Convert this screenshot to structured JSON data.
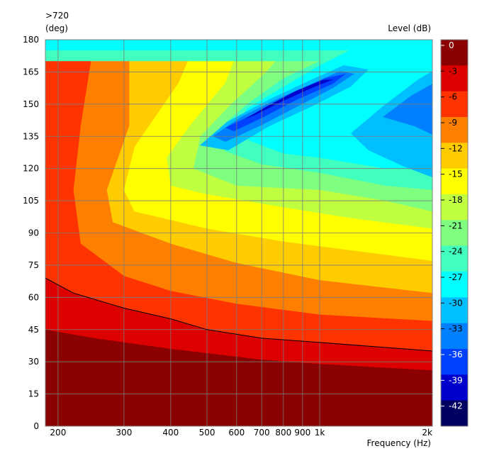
{
  "chart_data": {
    "type": "heatmap",
    "title_top_left": ">720",
    "ylabel": "(deg)",
    "xlabel": "Frequency  (Hz)",
    "colorbar_label": "Level  (dB)",
    "x_scale": "log",
    "xlim": [
      185,
      2000
    ],
    "ylim": [
      0,
      180
    ],
    "x_ticks": [
      {
        "value": 200,
        "label": "200"
      },
      {
        "value": 300,
        "label": "300"
      },
      {
        "value": 400,
        "label": "400"
      },
      {
        "value": 500,
        "label": "500"
      },
      {
        "value": 600,
        "label": "600"
      },
      {
        "value": 700,
        "label": "700"
      },
      {
        "value": 800,
        "label": "800"
      },
      {
        "value": 900,
        "label": "900"
      },
      {
        "value": 1000,
        "label": "1k"
      },
      {
        "value": 2000,
        "label": "2k"
      }
    ],
    "y_ticks": [
      0,
      15,
      30,
      45,
      60,
      75,
      90,
      105,
      120,
      135,
      150,
      165,
      180
    ],
    "colorbar": {
      "levels": [
        0,
        -3,
        -6,
        -9,
        -12,
        -15,
        -18,
        -21,
        -24,
        -27,
        -30,
        -33,
        -36,
        -39,
        -42
      ],
      "colors": [
        "#8b0000",
        "#dd0000",
        "#ff3300",
        "#ff7f00",
        "#ffcc00",
        "#ffff00",
        "#bfff40",
        "#7fff80",
        "#40ffbf",
        "#00ffff",
        "#00bfff",
        "#0080ff",
        "#0040ff",
        "#0000cc",
        "#000060"
      ]
    },
    "contours": [
      {
        "level": -3,
        "points": [
          [
            185,
            45
          ],
          [
            250,
            41
          ],
          [
            400,
            36
          ],
          [
            700,
            31
          ],
          [
            1000,
            29
          ],
          [
            2000,
            26
          ]
        ]
      },
      {
        "level": -6,
        "points": [
          [
            185,
            69
          ],
          [
            220,
            62
          ],
          [
            300,
            55
          ],
          [
            400,
            50
          ],
          [
            500,
            45
          ],
          [
            700,
            41
          ],
          [
            1000,
            39
          ],
          [
            2000,
            35
          ]
        ]
      },
      {
        "level": -9,
        "points": [
          [
            250,
            180
          ],
          [
            230,
            140
          ],
          [
            220,
            110
          ],
          [
            230,
            85
          ],
          [
            300,
            70
          ],
          [
            400,
            63
          ],
          [
            600,
            57
          ],
          [
            1000,
            52
          ],
          [
            2000,
            49
          ]
        ]
      },
      {
        "level": -12,
        "points": [
          [
            310,
            180
          ],
          [
            310,
            140
          ],
          [
            270,
            110
          ],
          [
            280,
            95
          ],
          [
            400,
            85
          ],
          [
            600,
            76
          ],
          [
            1000,
            68
          ],
          [
            2000,
            62
          ]
        ]
      },
      {
        "level": -15,
        "points": [
          [
            470,
            180
          ],
          [
            420,
            160
          ],
          [
            320,
            130
          ],
          [
            300,
            110
          ],
          [
            320,
            100
          ],
          [
            500,
            92
          ],
          [
            800,
            86
          ],
          [
            1200,
            82
          ],
          [
            2000,
            77
          ]
        ]
      },
      {
        "level": -18,
        "points": [
          [
            620,
            180
          ],
          [
            560,
            160
          ],
          [
            450,
            140
          ],
          [
            390,
            125
          ],
          [
            400,
            112
          ],
          [
            500,
            108
          ],
          [
            800,
            102
          ],
          [
            1200,
            97
          ],
          [
            2000,
            92
          ]
        ]
      },
      {
        "level": -21,
        "points": [
          [
            850,
            180
          ],
          [
            720,
            165
          ],
          [
            580,
            150
          ],
          [
            480,
            135
          ],
          [
            460,
            120
          ],
          [
            600,
            112
          ],
          [
            1000,
            110
          ],
          [
            1500,
            105
          ],
          [
            2000,
            100
          ]
        ]
      },
      {
        "level": -24,
        "points": [
          [
            1000,
            170
          ],
          [
            800,
            162
          ],
          [
            640,
            150
          ],
          [
            550,
            140
          ],
          [
            560,
            128
          ],
          [
            700,
            122
          ],
          [
            1000,
            118
          ],
          [
            1500,
            112
          ],
          [
            2000,
            110
          ]
        ]
      },
      {
        "level": -27,
        "points": [
          [
            1200,
            175
          ],
          [
            1000,
            168
          ],
          [
            800,
            158
          ],
          [
            640,
            148
          ],
          [
            600,
            140
          ],
          [
            650,
            133
          ],
          [
            800,
            127
          ],
          [
            1000,
            125
          ],
          [
            1500,
            120
          ],
          [
            2000,
            120
          ]
        ]
      }
    ]
  }
}
